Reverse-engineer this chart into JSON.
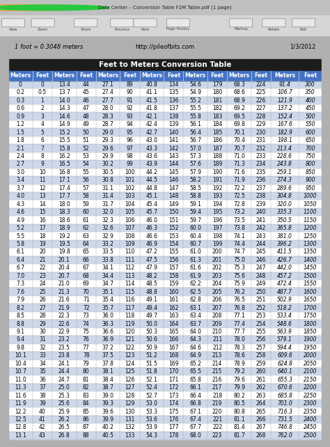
{
  "title": "Feet to Meters Conversion Table",
  "header_left": "1 foot = 0.3048 meters",
  "header_center": "http://pileofbits.com",
  "header_right": "1/3/2012",
  "window_title": "Data Center – Conversion Table F2M Table.pdf (1 page)",
  "col_headers": [
    "Meters",
    "Feet",
    "Meters",
    "Feet",
    "Meters",
    "Feet",
    "Meters",
    "Feet",
    "Meters",
    "Feet",
    "Meters",
    "Feet",
    "Meters",
    "Feet"
  ],
  "rows": [
    [
      0,
      0,
      13.4,
      44,
      27.1,
      89,
      40.8,
      134,
      54.6,
      179,
      68.3,
      224,
      91.4,
      300
    ],
    [
      0.2,
      0.5,
      13.7,
      45,
      27.4,
      90,
      41.1,
      135,
      54.9,
      180,
      68.6,
      225,
      106.7,
      350
    ],
    [
      0.3,
      1,
      14.0,
      46,
      27.7,
      91,
      41.5,
      136,
      55.2,
      181,
      68.9,
      226,
      121.9,
      400
    ],
    [
      0.6,
      2,
      14.3,
      47,
      28.0,
      92,
      41.8,
      137,
      55.5,
      182,
      69.2,
      227,
      137.2,
      450
    ],
    [
      0.9,
      3,
      14.6,
      48,
      28.3,
      93,
      42.1,
      138,
      55.8,
      183,
      69.5,
      228,
      152.4,
      500
    ],
    [
      1.2,
      4,
      14.9,
      49,
      28.7,
      94,
      42.4,
      139,
      56.1,
      184,
      69.8,
      229,
      167.6,
      550
    ],
    [
      1.5,
      5,
      15.2,
      50,
      29.0,
      95,
      42.7,
      140,
      56.4,
      185,
      70.1,
      230,
      182.9,
      600
    ],
    [
      1.8,
      6,
      15.5,
      51,
      29.3,
      96,
      43.0,
      141,
      56.7,
      186,
      70.4,
      231,
      198.1,
      650
    ],
    [
      2.1,
      7,
      15.8,
      52,
      29.6,
      97,
      43.3,
      142,
      57.0,
      187,
      70.7,
      232,
      213.4,
      700
    ],
    [
      2.4,
      8,
      16.2,
      53,
      29.9,
      98,
      43.6,
      143,
      57.3,
      188,
      71.0,
      233,
      228.6,
      750
    ],
    [
      2.7,
      9,
      16.5,
      54,
      30.2,
      99,
      43.9,
      144,
      57.6,
      189,
      71.3,
      234,
      243.8,
      800
    ],
    [
      3.0,
      10,
      16.8,
      55,
      30.5,
      100,
      44.2,
      145,
      57.9,
      190,
      71.6,
      235,
      259.1,
      850
    ],
    [
      3.4,
      11,
      17.1,
      56,
      30.8,
      101,
      44.5,
      146,
      58.2,
      191,
      71.9,
      236,
      274.3,
      900
    ],
    [
      3.7,
      12,
      17.4,
      57,
      31.1,
      102,
      44.8,
      147,
      58.5,
      192,
      72.2,
      237,
      289.6,
      950
    ],
    [
      4.0,
      13,
      17.7,
      58,
      31.4,
      103,
      45.1,
      148,
      58.8,
      193,
      72.5,
      238,
      304.8,
      1000
    ],
    [
      4.3,
      14,
      18.0,
      59,
      31.7,
      104,
      45.4,
      149,
      59.1,
      194,
      72.8,
      239,
      320.0,
      1050
    ],
    [
      4.6,
      15,
      18.3,
      60,
      32.0,
      105,
      45.7,
      150,
      59.4,
      195,
      73.2,
      240,
      335.3,
      1100
    ],
    [
      4.9,
      16,
      18.6,
      61,
      32.3,
      106,
      46.0,
      151,
      59.7,
      196,
      73.5,
      241,
      350.5,
      1150
    ],
    [
      5.2,
      17,
      18.9,
      62,
      32.6,
      107,
      46.3,
      152,
      60.0,
      197,
      73.8,
      242,
      365.8,
      1200
    ],
    [
      5.5,
      18,
      19.2,
      63,
      32.9,
      108,
      46.6,
      153,
      60.4,
      198,
      74.1,
      243,
      381.0,
      1250
    ],
    [
      5.8,
      19,
      19.5,
      64,
      33.2,
      109,
      46.9,
      154,
      60.7,
      199,
      74.4,
      244,
      396.2,
      1300
    ],
    [
      6.1,
      20,
      19.8,
      65,
      33.5,
      110,
      47.2,
      155,
      61.0,
      200,
      74.7,
      245,
      411.5,
      1350
    ],
    [
      6.4,
      21,
      20.1,
      66,
      33.8,
      111,
      47.5,
      156,
      61.3,
      201,
      75.0,
      246,
      426.7,
      1400
    ],
    [
      6.7,
      22,
      20.4,
      67,
      34.1,
      112,
      47.9,
      157,
      61.6,
      202,
      75.3,
      247,
      442.0,
      1450
    ],
    [
      7.0,
      23,
      20.7,
      68,
      34.4,
      113,
      48.2,
      158,
      61.9,
      203,
      75.6,
      248,
      457.2,
      1500
    ],
    [
      7.3,
      24,
      21.0,
      69,
      34.7,
      114,
      48.5,
      159,
      62.2,
      204,
      75.9,
      249,
      472.4,
      1550
    ],
    [
      7.6,
      25,
      21.3,
      70,
      35.1,
      115,
      48.8,
      160,
      62.5,
      205,
      76.2,
      250,
      487.7,
      1600
    ],
    [
      7.9,
      26,
      21.6,
      71,
      35.4,
      116,
      49.1,
      161,
      62.8,
      206,
      76.5,
      251,
      502.9,
      1650
    ],
    [
      8.2,
      27,
      21.9,
      72,
      35.7,
      117,
      49.4,
      162,
      63.1,
      207,
      76.8,
      252,
      518.2,
      1700
    ],
    [
      8.5,
      28,
      22.3,
      73,
      36.0,
      118,
      49.7,
      163,
      63.4,
      208,
      77.1,
      253,
      533.4,
      1750
    ],
    [
      8.8,
      29,
      22.6,
      74,
      36.3,
      119,
      50.0,
      164,
      63.7,
      209,
      77.4,
      254,
      548.6,
      1800
    ],
    [
      9.1,
      30,
      22.9,
      75,
      36.6,
      120,
      50.3,
      165,
      64.0,
      210,
      77.7,
      255,
      563.9,
      1850
    ],
    [
      9.4,
      31,
      23.2,
      76,
      36.9,
      121,
      50.6,
      166,
      64.3,
      211,
      78.0,
      256,
      579.1,
      1900
    ],
    [
      9.8,
      32,
      23.5,
      77,
      37.2,
      122,
      50.9,
      167,
      64.6,
      212,
      78.3,
      257,
      594.4,
      1950
    ],
    [
      10.1,
      33,
      23.8,
      78,
      37.5,
      123,
      51.2,
      168,
      64.9,
      213,
      78.6,
      258,
      609.6,
      2000
    ],
    [
      10.4,
      34,
      24.1,
      79,
      37.8,
      124,
      51.5,
      169,
      65.2,
      214,
      78.9,
      259,
      624.8,
      2050
    ],
    [
      10.7,
      35,
      24.4,
      80,
      38.1,
      125,
      51.8,
      170,
      65.5,
      215,
      79.2,
      260,
      640.1,
      2100
    ],
    [
      11.0,
      36,
      24.7,
      81,
      38.4,
      126,
      52.1,
      171,
      65.8,
      216,
      79.6,
      261,
      655.3,
      2150
    ],
    [
      11.3,
      37,
      25.0,
      82,
      38.7,
      127,
      52.4,
      172,
      66.1,
      217,
      79.9,
      262,
      670.6,
      2200
    ],
    [
      11.6,
      38,
      25.3,
      83,
      39.0,
      128,
      52.7,
      173,
      66.4,
      218,
      80.2,
      263,
      685.8,
      2250
    ],
    [
      11.9,
      39,
      25.6,
      84,
      39.3,
      129,
      53.0,
      174,
      66.8,
      219,
      80.5,
      264,
      701.0,
      2300
    ],
    [
      12.2,
      40,
      25.9,
      85,
      39.6,
      130,
      53.3,
      175,
      67.1,
      220,
      80.8,
      265,
      716.3,
      2350
    ],
    [
      12.5,
      41,
      26.2,
      86,
      39.9,
      131,
      53.6,
      176,
      67.4,
      221,
      81.1,
      266,
      731.5,
      2400
    ],
    [
      12.8,
      42,
      26.5,
      87,
      40.2,
      132,
      53.9,
      177,
      67.7,
      222,
      81.4,
      267,
      746.8,
      2450
    ],
    [
      13.1,
      43,
      26.8,
      88,
      40.5,
      133,
      54.3,
      178,
      68.0,
      223,
      81.7,
      268,
      762.0,
      2500
    ]
  ],
  "title_bar_color": "#1c1c1c",
  "title_text_color": "#ffffff",
  "header_row_color": "#4472c4",
  "header_text_color": "#ffffff",
  "row_colors": [
    "#ccd9ea",
    "#ffffff"
  ],
  "grid_line_color": "#999999",
  "toolbar_bg": "#d6d6d6",
  "titlebar_bg": "#c0c0c0",
  "window_bg": "#b0b0b0",
  "content_bg": "#ffffff",
  "traffic_lights": [
    "#ff5f57",
    "#febc2e",
    "#28c840"
  ]
}
